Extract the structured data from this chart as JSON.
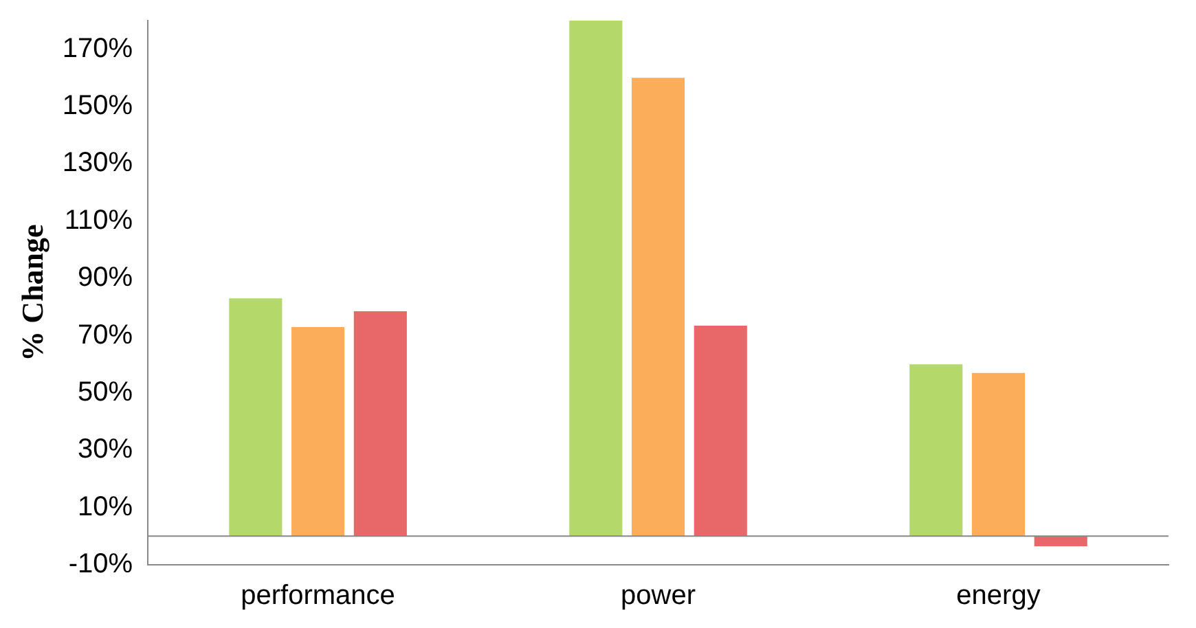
{
  "chart_data": {
    "type": "bar",
    "ylabel": "% Change",
    "categories": [
      "performance",
      "power",
      "energy"
    ],
    "series": [
      {
        "color": "#b5d86a",
        "values": [
          83,
          180,
          60
        ]
      },
      {
        "color": "#fbad5a",
        "values": [
          73,
          160,
          57
        ]
      },
      {
        "color": "#e8686a",
        "values": [
          78.5,
          73.5,
          -3.5
        ]
      }
    ],
    "ylim": [
      -10,
      180
    ],
    "yticks": [
      {
        "value": -10,
        "label": "-10%"
      },
      {
        "value": 10,
        "label": "10%"
      },
      {
        "value": 30,
        "label": "30%"
      },
      {
        "value": 50,
        "label": "50%"
      },
      {
        "value": 70,
        "label": "70%"
      },
      {
        "value": 90,
        "label": "90%"
      },
      {
        "value": 110,
        "label": "110%"
      },
      {
        "value": 130,
        "label": "130%"
      },
      {
        "value": 150,
        "label": "150%"
      },
      {
        "value": 170,
        "label": "170%"
      }
    ],
    "grid": false
  }
}
